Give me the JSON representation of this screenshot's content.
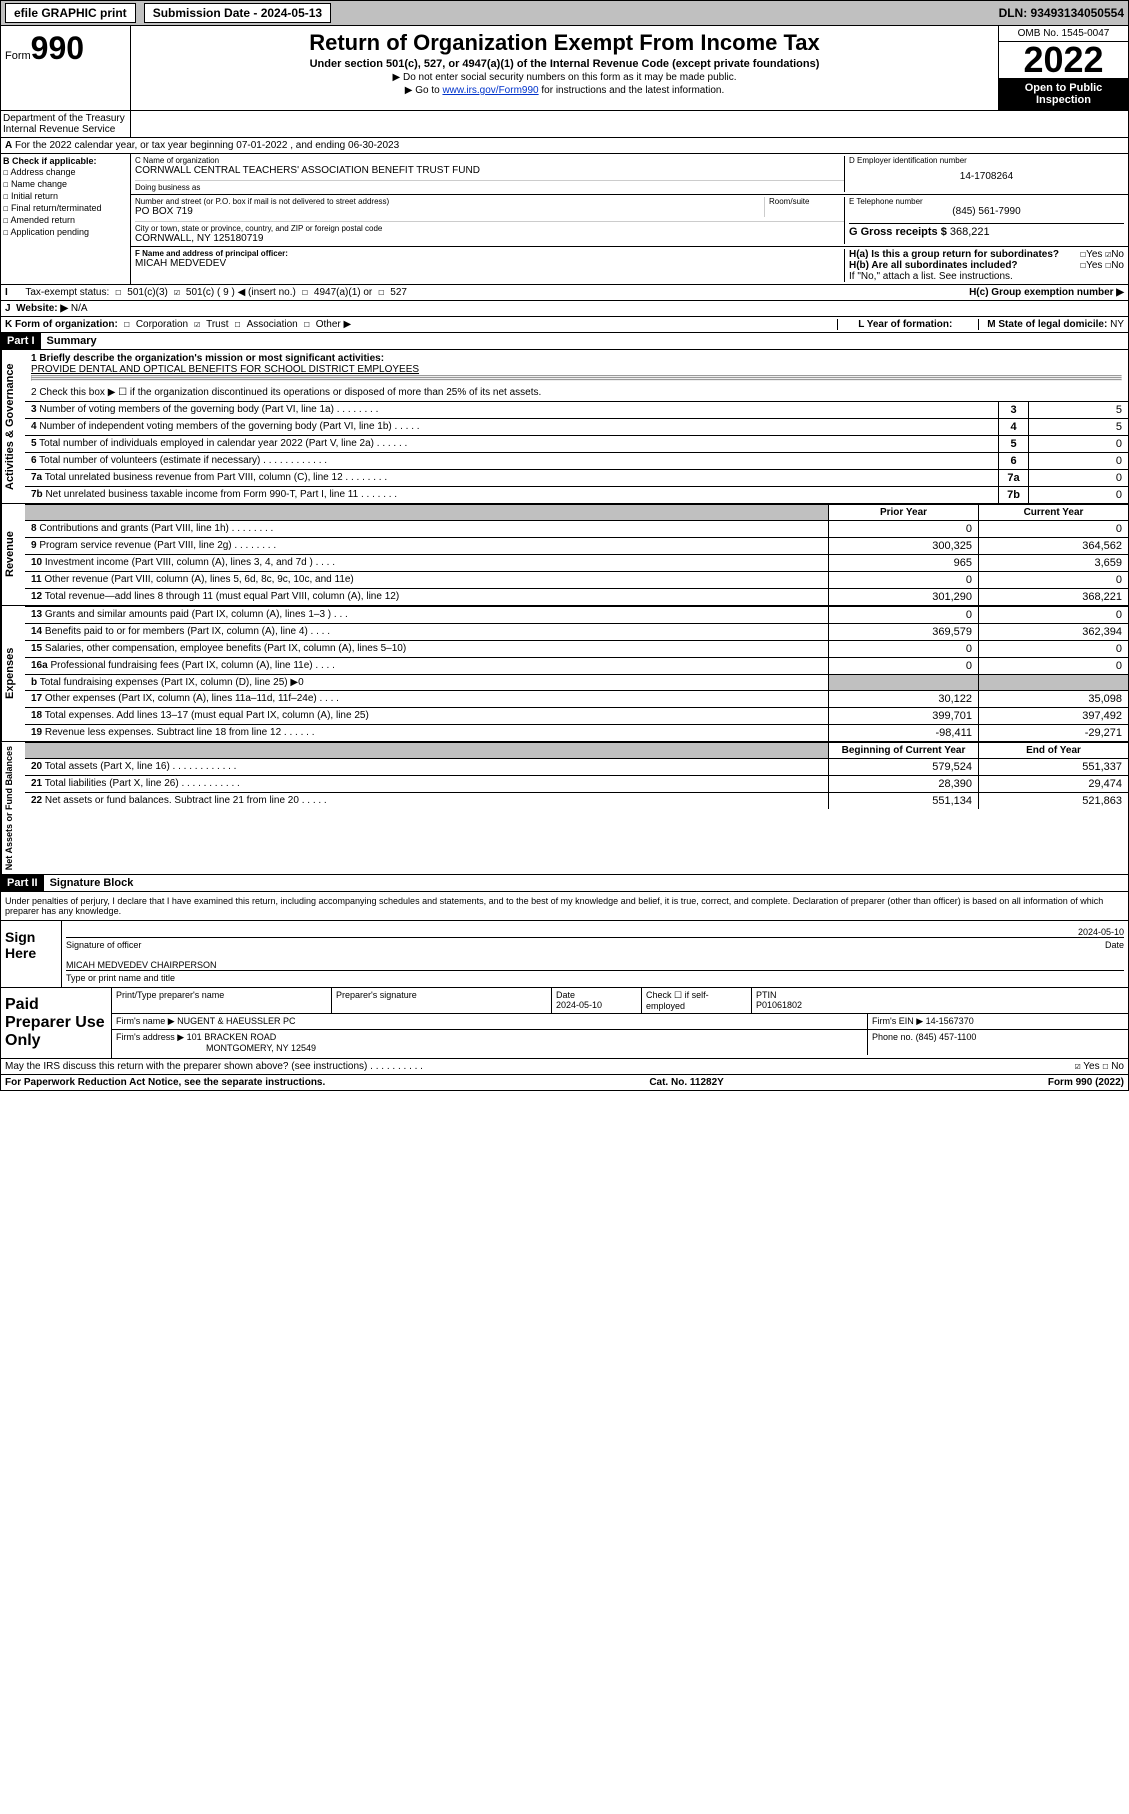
{
  "top": {
    "efile": "efile GRAPHIC print",
    "sub_lbl": "Submission Date - 2024-05-13",
    "dln": "DLN: 93493134050554"
  },
  "header": {
    "form_word": "Form",
    "form_num": "990",
    "title": "Return of Organization Exempt From Income Tax",
    "sub": "Under section 501(c), 527, or 4947(a)(1) of the Internal Revenue Code (except private foundations)",
    "note1": "▶ Do not enter social security numbers on this form as it may be made public.",
    "note2_pre": "▶ Go to ",
    "note2_link": "www.irs.gov/Form990",
    "note2_post": " for instructions and the latest information.",
    "omb": "OMB No. 1545-0047",
    "year": "2022",
    "otp": "Open to Public Inspection",
    "dept": "Department of the Treasury",
    "irs": "Internal Revenue Service"
  },
  "lineA": "For the 2022 calendar year, or tax year beginning 07-01-2022   , and ending 06-30-2023",
  "boxB": {
    "title": "B Check if applicable:",
    "a1": "Address change",
    "a2": "Name change",
    "a3": "Initial return",
    "a4": "Final return/terminated",
    "a5": "Amended return",
    "a6": "Application pending"
  },
  "boxC": {
    "name_lbl": "C Name of organization",
    "name": "CORNWALL CENTRAL TEACHERS' ASSOCIATION BENEFIT TRUST FUND",
    "dba_lbl": "Doing business as",
    "addr_lbl": "Number and street (or P.O. box if mail is not delivered to street address)",
    "room_lbl": "Room/suite",
    "addr": "PO BOX 719",
    "city_lbl": "City or town, state or province, country, and ZIP or foreign postal code",
    "city": "CORNWALL, NY  125180719"
  },
  "boxD": {
    "lbl": "D Employer identification number",
    "val": "14-1708264"
  },
  "boxE": {
    "lbl": "E Telephone number",
    "val": "(845) 561-7990"
  },
  "boxG": {
    "lbl": "G Gross receipts $",
    "val": "368,221"
  },
  "boxF": {
    "lbl": "F Name and address of principal officer:",
    "val": "MICAH MEDVEDEV"
  },
  "boxH": {
    "ha": "H(a)  Is this a group return for subordinates?",
    "hb": "H(b)  Are all subordinates included?",
    "hb_note": "If \"No,\" attach a list. See instructions.",
    "hc": "H(c)  Group exemption number ▶",
    "yes": "Yes",
    "no": "No"
  },
  "boxI": {
    "lbl": "Tax-exempt status:",
    "c3": "501(c)(3)",
    "c9": "501(c) ( 9 ) ◀ (insert no.)",
    "c4947": "4947(a)(1) or",
    "c527": "527"
  },
  "boxJ": {
    "lbl": "Website: ▶",
    "val": "N/A"
  },
  "boxK": {
    "lbl": "K Form of organization:",
    "corp": "Corporation",
    "trust": "Trust",
    "assoc": "Association",
    "other": "Other ▶"
  },
  "boxL": {
    "lbl": "L Year of formation:"
  },
  "boxM": {
    "lbl": "M State of legal domicile:",
    "val": "NY"
  },
  "part1": {
    "hdr": "Part I",
    "title": "Summary",
    "q1_lbl": "1  Briefly describe the organization's mission or most significant activities:",
    "q1_val": "PROVIDE DENTAL AND OPTICAL BENEFITS FOR SCHOOL DISTRICT EMPLOYEES",
    "q2": "2   Check this box ▶ ☐  if the organization discontinued its operations or disposed of more than 25% of its net assets.",
    "vlabel_gov": "Activities & Governance",
    "vlabel_rev": "Revenue",
    "vlabel_exp": "Expenses",
    "vlabel_net": "Net Assets or Fund Balances",
    "rows_gov": [
      {
        "n": "3",
        "lbl": "Number of voting members of the governing body (Part VI, line 1a)  .    .    .    .    .    .    .    .",
        "v": "5"
      },
      {
        "n": "4",
        "lbl": "Number of independent voting members of the governing body (Part VI, line 1b)  .    .    .    .    .",
        "v": "5"
      },
      {
        "n": "5",
        "lbl": "Total number of individuals employed in calendar year 2022 (Part V, line 2a)  .    .    .    .    .    .",
        "v": "0"
      },
      {
        "n": "6",
        "lbl": "Total number of volunteers (estimate if necessary)  .    .    .    .    .    .    .    .    .    .    .    .",
        "v": "0"
      },
      {
        "n": "7a",
        "lbl": "Total unrelated business revenue from Part VIII, column (C), line 12  .    .    .    .    .    .    .    .",
        "v": "0"
      },
      {
        "n": "7b",
        "lbl": "Net unrelated business taxable income from Form 990-T, Part I, line 11  .    .    .    .    .    .    .",
        "v": "0"
      }
    ],
    "hdr_prior": "Prior Year",
    "hdr_curr": "Current Year",
    "rows_rev": [
      {
        "n": "8",
        "lbl": "Contributions and grants (Part VIII, line 1h)   .    .    .    .    .    .    .    .",
        "p": "0",
        "c": "0"
      },
      {
        "n": "9",
        "lbl": "Program service revenue (Part VIII, line 2g)   .    .    .    .    .    .    .    .",
        "p": "300,325",
        "c": "364,562"
      },
      {
        "n": "10",
        "lbl": "Investment income (Part VIII, column (A), lines 3, 4, and 7d )   .    .    .    .",
        "p": "965",
        "c": "3,659"
      },
      {
        "n": "11",
        "lbl": "Other revenue (Part VIII, column (A), lines 5, 6d, 8c, 9c, 10c, and 11e)",
        "p": "0",
        "c": "0"
      },
      {
        "n": "12",
        "lbl": "Total revenue—add lines 8 through 11 (must equal Part VIII, column (A), line 12)",
        "p": "301,290",
        "c": "368,221"
      }
    ],
    "rows_exp": [
      {
        "n": "13",
        "lbl": "Grants and similar amounts paid (Part IX, column (A), lines 1–3 )   .    .    .",
        "p": "0",
        "c": "0"
      },
      {
        "n": "14",
        "lbl": "Benefits paid to or for members (Part IX, column (A), line 4)   .    .    .    .",
        "p": "369,579",
        "c": "362,394"
      },
      {
        "n": "15",
        "lbl": "Salaries, other compensation, employee benefits (Part IX, column (A), lines 5–10)",
        "p": "0",
        "c": "0"
      },
      {
        "n": "16a",
        "lbl": "Professional fundraising fees (Part IX, column (A), line 11e)   .    .    .    .",
        "p": "0",
        "c": "0"
      },
      {
        "n": "b",
        "lbl": "Total fundraising expenses (Part IX, column (D), line 25) ▶0",
        "p": "",
        "c": "",
        "gray": true
      },
      {
        "n": "17",
        "lbl": "Other expenses (Part IX, column (A), lines 11a–11d, 11f–24e)   .    .    .    .",
        "p": "30,122",
        "c": "35,098"
      },
      {
        "n": "18",
        "lbl": "Total expenses. Add lines 13–17 (must equal Part IX, column (A), line 25)",
        "p": "399,701",
        "c": "397,492"
      },
      {
        "n": "19",
        "lbl": "Revenue less expenses. Subtract line 18 from line 12  .    .    .    .    .    .",
        "p": "-98,411",
        "c": "-29,271"
      }
    ],
    "hdr_beg": "Beginning of Current Year",
    "hdr_end": "End of Year",
    "rows_net": [
      {
        "n": "20",
        "lbl": "Total assets (Part X, line 16)   .    .    .    .    .    .    .    .    .    .    .    .",
        "p": "579,524",
        "c": "551,337"
      },
      {
        "n": "21",
        "lbl": "Total liabilities (Part X, line 26)   .    .    .    .    .    .    .    .    .    .    .",
        "p": "28,390",
        "c": "29,474"
      },
      {
        "n": "22",
        "lbl": "Net assets or fund balances. Subtract line 21 from line 20  .    .    .    .    .",
        "p": "551,134",
        "c": "521,863"
      }
    ]
  },
  "part2": {
    "hdr": "Part II",
    "title": "Signature Block",
    "decl": "Under penalties of perjury, I declare that I have examined this return, including accompanying schedules and statements, and to the best of my knowledge and belief, it is true, correct, and complete. Declaration of preparer (other than officer) is based on all information of which preparer has any knowledge."
  },
  "sign": {
    "here": "Sign Here",
    "sig_lbl": "Signature of officer",
    "date_lbl": "Date",
    "date": "2024-05-10",
    "name": "MICAH MEDVEDEV CHAIRPERSON",
    "name_lbl": "Type or print name and title"
  },
  "prep": {
    "title": "Paid Preparer Use Only",
    "c1": "Print/Type preparer's name",
    "c2": "Preparer's signature",
    "c3_lbl": "Date",
    "c3": "2024-05-10",
    "c4_lbl": "Check ☐ if self-employed",
    "c5_lbl": "PTIN",
    "c5": "P01061802",
    "firm_lbl": "Firm's name    ▶",
    "firm": "NUGENT & HAEUSSLER PC",
    "ein_lbl": "Firm's EIN ▶",
    "ein": "14-1567370",
    "addr_lbl": "Firm's address ▶",
    "addr1": "101 BRACKEN ROAD",
    "addr2": "MONTGOMERY, NY  12549",
    "phone_lbl": "Phone no.",
    "phone": "(845) 457-1100"
  },
  "footer": {
    "q": "May the IRS discuss this return with the preparer shown above? (see instructions)   .    .    .    .    .    .    .    .    .    .",
    "yes": "Yes",
    "no": "No",
    "pra": "For Paperwork Reduction Act Notice, see the separate instructions.",
    "cat": "Cat. No. 11282Y",
    "form": "Form 990 (2022)"
  }
}
